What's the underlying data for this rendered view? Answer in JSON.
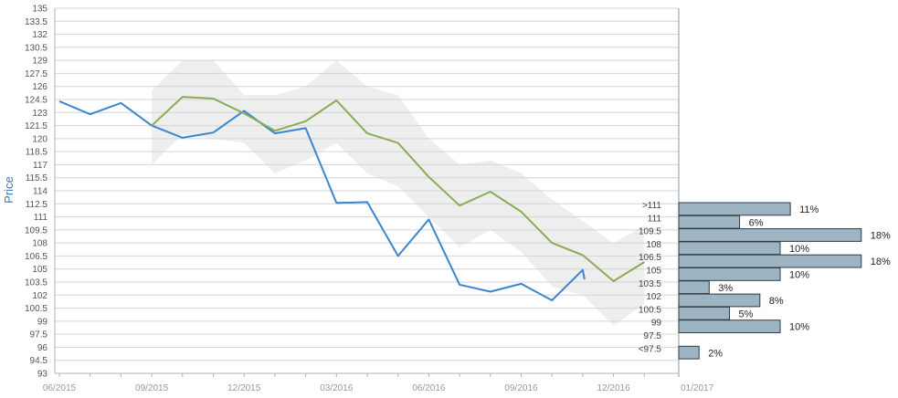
{
  "chart_data": {
    "type": "line",
    "ylabel": "Price",
    "ylim": [
      93,
      135
    ],
    "y_ticks": [
      "135",
      "133.5",
      "132",
      "130.5",
      "129",
      "127.5",
      "126",
      "124.5",
      "123",
      "121.5",
      "120",
      "118.5",
      "117",
      "115.5",
      "114",
      "112.5",
      "111",
      "109.5",
      "108",
      "106.5",
      "105",
      "103.5",
      "102",
      "100.5",
      "99",
      "97.5",
      "96",
      "94.5",
      "93"
    ],
    "x_ticks": [
      "06/2015",
      "09/2015",
      "12/2015",
      "03/2016",
      "06/2016",
      "09/2016",
      "12/2016",
      "01/2017"
    ],
    "grid": true,
    "series": [
      {
        "color": "#3a86d0",
        "points": [
          [
            "06/2015",
            124.3
          ],
          [
            "07/2015",
            122.8
          ],
          [
            "08/2015",
            124.1
          ],
          [
            "09/2015",
            121.5
          ],
          [
            "10/2015",
            120.1
          ],
          [
            "11/2015",
            120.7
          ],
          [
            "12/2015",
            123.2
          ],
          [
            "01/2016",
            120.6
          ],
          [
            "02/2016",
            121.2
          ],
          [
            "03/2016",
            112.6
          ],
          [
            "04/2016",
            112.7
          ],
          [
            "05/2016",
            106.5
          ],
          [
            "06/2016",
            110.7
          ],
          [
            "07/2016",
            103.2
          ],
          [
            "08/2016",
            102.4
          ],
          [
            "09/2016",
            103.3
          ],
          [
            "10/2016",
            101.4
          ],
          [
            "11/2016",
            104.9
          ],
          [
            "11/2016b",
            103.8
          ]
        ]
      },
      {
        "color": "#8aad52",
        "points": [
          [
            "09/2015",
            121.5
          ],
          [
            "10/2015",
            124.8
          ],
          [
            "11/2015",
            124.6
          ],
          [
            "12/2015",
            122.9
          ],
          [
            "01/2016",
            120.9
          ],
          [
            "02/2016",
            122.0
          ],
          [
            "03/2016",
            124.4
          ],
          [
            "04/2016",
            120.6
          ],
          [
            "05/2016",
            119.5
          ],
          [
            "06/2016",
            115.6
          ],
          [
            "07/2016",
            112.3
          ],
          [
            "08/2016",
            113.9
          ],
          [
            "09/2016",
            111.6
          ],
          [
            "10/2016",
            108.0
          ],
          [
            "11/2016",
            106.6
          ],
          [
            "12/2016",
            103.6
          ],
          [
            "01/2017",
            105.8
          ]
        ]
      }
    ],
    "band": {
      "color": "#eeeeee",
      "upper": [
        [
          "09/2015",
          125.5
        ],
        [
          "10/2015",
          129.0
        ],
        [
          "11/2015",
          129.0
        ],
        [
          "12/2015",
          125.0
        ],
        [
          "01/2016",
          125.0
        ],
        [
          "02/2016",
          126.0
        ],
        [
          "03/2016",
          129.0
        ],
        [
          "04/2016",
          126.0
        ],
        [
          "05/2016",
          125.0
        ],
        [
          "06/2016",
          120.0
        ],
        [
          "07/2016",
          117.0
        ],
        [
          "08/2016",
          117.5
        ],
        [
          "09/2016",
          116.0
        ],
        [
          "10/2016",
          113.0
        ],
        [
          "11/2016",
          110.5
        ],
        [
          "12/2016",
          108.0
        ],
        [
          "01/2017",
          110.0
        ]
      ],
      "lower": [
        [
          "09/2015",
          117.0
        ],
        [
          "10/2015",
          120.5
        ],
        [
          "11/2015",
          120.0
        ],
        [
          "12/2015",
          119.5
        ],
        [
          "01/2016",
          116.0
        ],
        [
          "02/2016",
          117.5
        ],
        [
          "03/2016",
          119.5
        ],
        [
          "04/2016",
          116.0
        ],
        [
          "05/2016",
          114.5
        ],
        [
          "06/2016",
          111.0
        ],
        [
          "07/2016",
          107.5
        ],
        [
          "08/2016",
          109.5
        ],
        [
          "09/2016",
          107.0
        ],
        [
          "10/2016",
          103.0
        ],
        [
          "11/2016",
          102.0
        ],
        [
          "12/2016",
          98.5
        ],
        [
          "01/2017",
          101.0
        ]
      ]
    },
    "distribution": {
      "color": "#9db5c3",
      "bins": [
        {
          "label": ">111",
          "pct": "11%",
          "value": 11
        },
        {
          "label": "111",
          "pct": "6%",
          "value": 6
        },
        {
          "label": "109.5",
          "pct": "18%",
          "value": 18
        },
        {
          "label": "108",
          "pct": "10%",
          "value": 10
        },
        {
          "label": "106.5",
          "pct": "18%",
          "value": 18
        },
        {
          "label": "105",
          "pct": "10%",
          "value": 10
        },
        {
          "label": "103.5",
          "pct": "3%",
          "value": 3
        },
        {
          "label": "102",
          "pct": "8%",
          "value": 8
        },
        {
          "label": "100.5",
          "pct": "5%",
          "value": 5
        },
        {
          "label": "99",
          "pct": "10%",
          "value": 10
        },
        {
          "label": "97.5",
          "pct": "",
          "value": 0
        },
        {
          "label": "<97.5",
          "pct": "2%",
          "value": 2
        }
      ]
    }
  }
}
